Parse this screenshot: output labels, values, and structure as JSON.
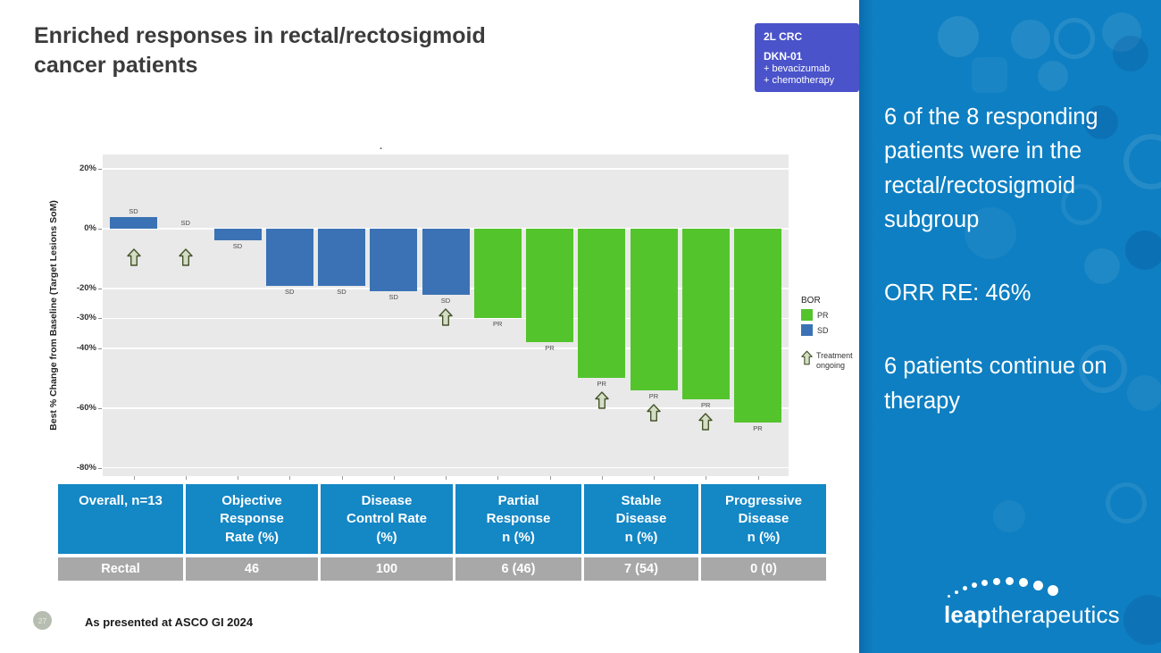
{
  "slide": {
    "title": "Enriched responses in rectal/rectosigmoid\ncancer patients",
    "badge": {
      "line1": "2L CRC",
      "line2": "DKN-01",
      "line3": "+ bevacizumab",
      "line4": "+ chemotherapy"
    },
    "footer": {
      "page_number": "27",
      "note": "As presented at ASCO GI 2024"
    },
    "logo": {
      "bold_part": "leap",
      "regular_part": "therapeutics"
    }
  },
  "sidebar": {
    "paragraph1": "6 of the 8 responding patients were in the rectal/rectosigmoid subgroup",
    "paragraph2": "ORR RE: 46%",
    "paragraph3": "6 patients continue on therapy",
    "background_color": "#0E7FC2"
  },
  "chart_data": {
    "type": "bar",
    "subtype": "waterfall",
    "title": ".",
    "ylabel": "Best % Change from Baseline (Target Lesions SoM)",
    "ylim": [
      -83,
      25
    ],
    "yticks": [
      20,
      0,
      -20,
      -30,
      -40,
      -60,
      -80
    ],
    "ytick_labels": [
      "20%",
      "0%",
      "-20%",
      "-30%",
      "-40%",
      "-60%",
      "-80%"
    ],
    "grid": "white horizontal lines on gray panel",
    "bars": [
      {
        "value": 4,
        "bor": "SD",
        "ongoing": true
      },
      {
        "value": 0,
        "bor": "SD",
        "ongoing": true
      },
      {
        "value": -4,
        "bor": "SD",
        "ongoing": false
      },
      {
        "value": -19,
        "bor": "SD",
        "ongoing": false
      },
      {
        "value": -19,
        "bor": "SD",
        "ongoing": false
      },
      {
        "value": -21,
        "bor": "SD",
        "ongoing": false
      },
      {
        "value": -22,
        "bor": "SD",
        "ongoing": true
      },
      {
        "value": -30,
        "bor": "PR",
        "ongoing": false
      },
      {
        "value": -38,
        "bor": "PR",
        "ongoing": false
      },
      {
        "value": -50,
        "bor": "PR",
        "ongoing": true
      },
      {
        "value": -54,
        "bor": "PR",
        "ongoing": true
      },
      {
        "value": -57,
        "bor": "PR",
        "ongoing": true
      },
      {
        "value": -65,
        "bor": "PR",
        "ongoing": false
      }
    ],
    "legend": {
      "title": "BOR",
      "entries": [
        {
          "label": "PR",
          "color": "#54C42D"
        },
        {
          "label": "SD",
          "color": "#3B72B5"
        }
      ],
      "ongoing_label": "Treatment\nongoing",
      "position": "right"
    },
    "colors": {
      "PR": "#54C42D",
      "SD": "#3B72B5",
      "plot_bg": "#E9E9E9",
      "arrow_fill": "#D3DEC5",
      "arrow_stroke": "#46532C"
    }
  },
  "table": {
    "headers": [
      "Overall, n=13",
      "Objective\nResponse\nRate (%)",
      "Disease\nControl Rate\n(%)",
      "Partial\nResponse\nn (%)",
      "Stable\nDisease\nn (%)",
      "Progressive\nDisease\nn (%)"
    ],
    "rows": [
      [
        "Rectal",
        "46",
        "100",
        "6 (46)",
        "7 (54)",
        "0 (0)"
      ]
    ],
    "header_bg": "#1487C5",
    "row_bg": "#A8A8A8"
  }
}
